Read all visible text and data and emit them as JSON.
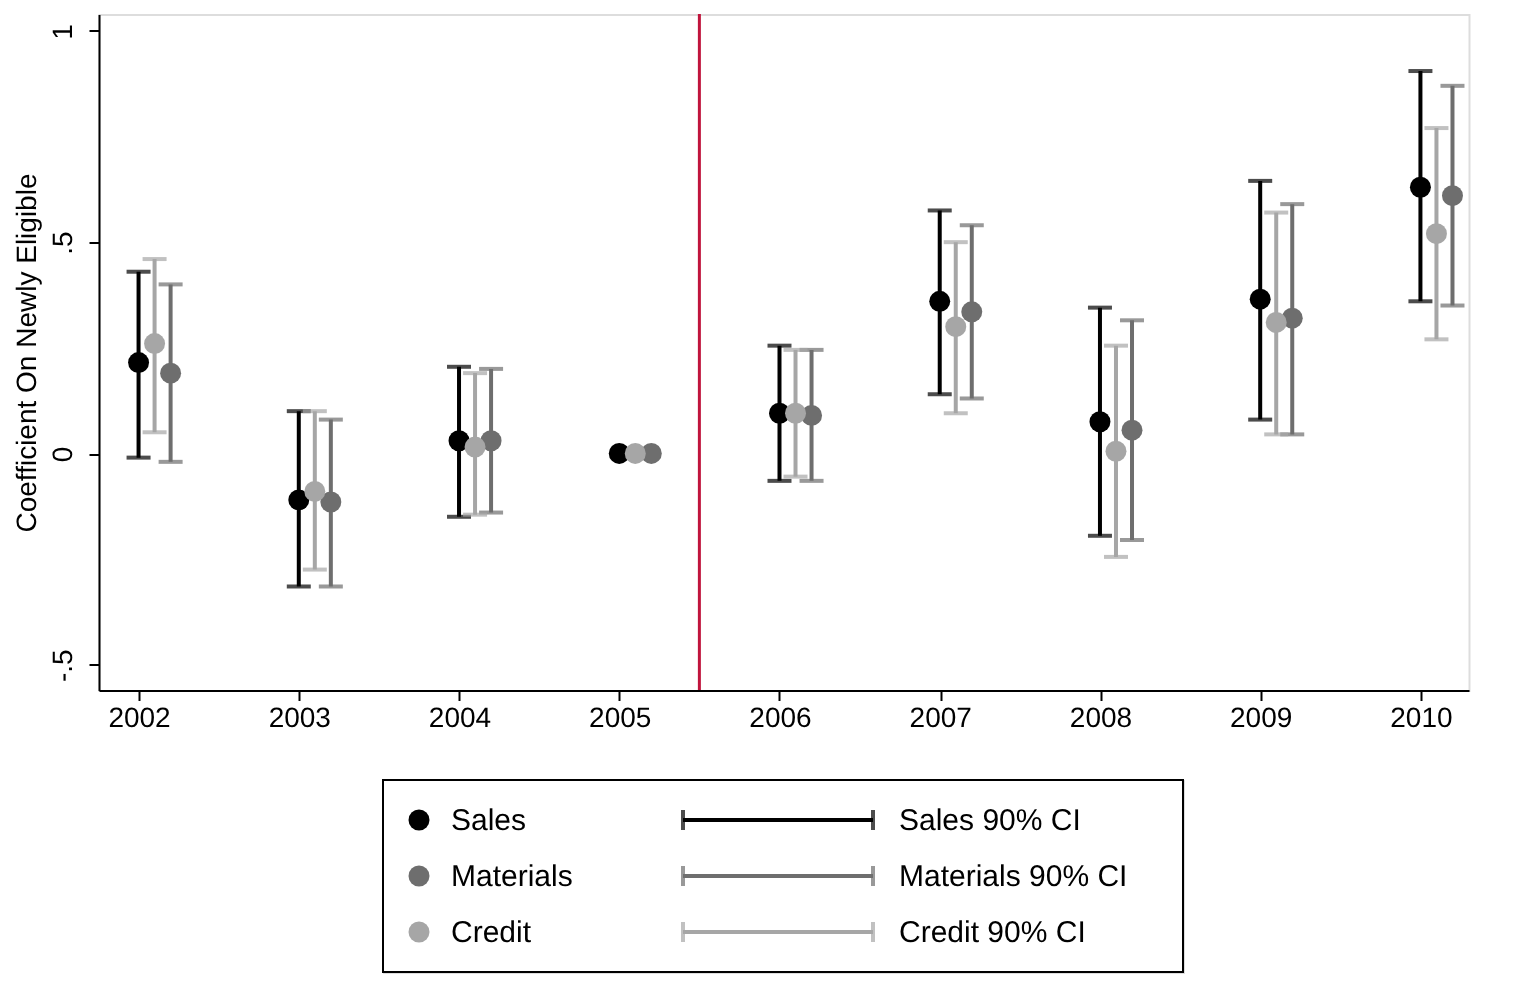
{
  "chart_data": {
    "type": "scatter",
    "ylabel": "Coefficient On Newly Eligible",
    "series": [
      {
        "name": "Sales",
        "color": "#000000",
        "x": [
          2002,
          2003,
          2004,
          2005,
          2006,
          2007,
          2008,
          2009,
          2010
        ],
        "values": [
          0.215,
          -0.11,
          0.03,
          0,
          0.095,
          0.36,
          0.075,
          0.365,
          0.63
        ],
        "errors": [
          [
            -0.01,
            0.43
          ],
          [
            -0.315,
            0.1
          ],
          [
            -0.15,
            0.205
          ],
          null,
          [
            -0.065,
            0.255
          ],
          [
            0.14,
            0.575
          ],
          [
            -0.195,
            0.345
          ],
          [
            0.08,
            0.645
          ],
          [
            0.36,
            0.905
          ]
        ]
      },
      {
        "name": "Materials",
        "color": "#6e6e6e",
        "x": [
          2002.2,
          2003.2,
          2004.2,
          2005.2,
          2006.2,
          2007.2,
          2008.2,
          2009.2,
          2010.2
        ],
        "values": [
          0.19,
          -0.115,
          0.03,
          0,
          0.09,
          0.335,
          0.055,
          0.32,
          0.61
        ],
        "errors": [
          [
            -0.02,
            0.4
          ],
          [
            -0.315,
            0.08
          ],
          [
            -0.14,
            0.2
          ],
          null,
          [
            -0.065,
            0.245
          ],
          [
            0.13,
            0.54
          ],
          [
            -0.205,
            0.315
          ],
          [
            0.045,
            0.59
          ],
          [
            0.35,
            0.87
          ]
        ]
      },
      {
        "name": "Credit",
        "color": "#a6a6a6",
        "x": [
          2002.1,
          2003.1,
          2004.1,
          2005.1,
          2006.1,
          2007.1,
          2008.1,
          2009.1,
          2010.1
        ],
        "values": [
          0.26,
          -0.09,
          0.015,
          0,
          0.095,
          0.3,
          0.005,
          0.31,
          0.52
        ],
        "errors": [
          [
            0.05,
            0.46
          ],
          [
            -0.275,
            0.1
          ],
          [
            -0.145,
            0.19
          ],
          null,
          [
            -0.055,
            0.245
          ],
          [
            0.095,
            0.5
          ],
          [
            -0.245,
            0.255
          ],
          [
            0.045,
            0.57
          ],
          [
            0.27,
            0.77
          ]
        ]
      }
    ],
    "annotations": [
      "Sales 90% CI",
      "Materials 90% CI",
      "Credit 90% CI"
    ],
    "xlim": [
      2001.75,
      2010.3
    ],
    "xticks": [
      2002,
      2003,
      2004,
      2005,
      2006,
      2007,
      2008,
      2009,
      2010
    ],
    "ylim": [
      -0.56,
      1.04
    ],
    "yticks": [
      {
        "value": -0.5,
        "label": "-.5"
      },
      0,
      {
        "value": 0.5,
        "label": ".5"
      },
      1
    ],
    "ref_lines": [
      {
        "axis": "x",
        "value": 2005.5,
        "color": "#c0143c"
      }
    ],
    "grid": false,
    "legend": "bottom",
    "marker": "circle"
  }
}
